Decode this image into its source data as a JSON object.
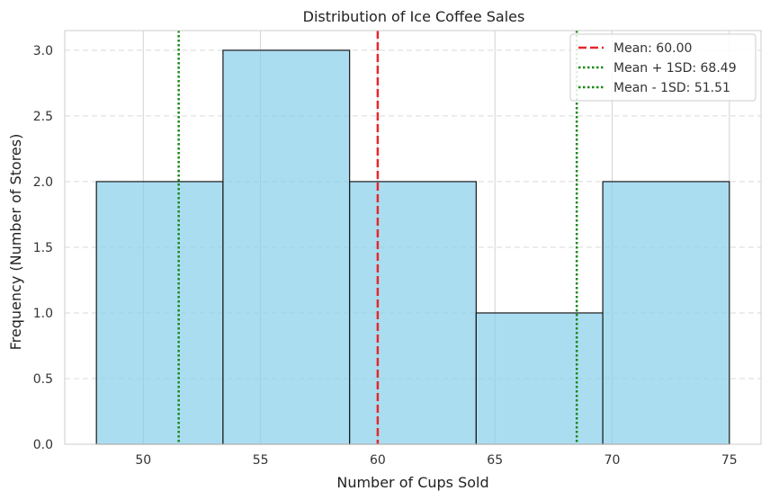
{
  "chart_data": {
    "type": "bar",
    "title": "Distribution of Ice Coffee Sales",
    "xlabel": "Number of Cups Sold",
    "ylabel": "Frequency (Number of Stores)",
    "bin_edges": [
      48,
      53.4,
      58.8,
      64.2,
      69.6,
      75
    ],
    "values": [
      2,
      3,
      2,
      1,
      2
    ],
    "xlim": [
      46.65,
      76.35
    ],
    "ylim": [
      0,
      3.15
    ],
    "xticks": [
      50,
      55,
      60,
      65,
      70,
      75
    ],
    "yticks": [
      0.0,
      0.5,
      1.0,
      1.5,
      2.0,
      2.5,
      3.0
    ],
    "ytick_labels": [
      "0.0",
      "0.5",
      "1.0",
      "1.5",
      "2.0",
      "2.5",
      "3.0"
    ],
    "bar_color": "#87CEEB",
    "grid": true,
    "legend_position": "top-right",
    "reference_lines": [
      {
        "label": "Mean: 60.00",
        "x": 60.0,
        "color": "#e8262a",
        "style": "dashed"
      },
      {
        "label": "Mean + 1SD: 68.49",
        "x": 68.49,
        "color": "#1a8a1a",
        "style": "dotted"
      },
      {
        "label": "Mean - 1SD: 51.51",
        "x": 51.51,
        "color": "#1a8a1a",
        "style": "dotted"
      }
    ]
  }
}
